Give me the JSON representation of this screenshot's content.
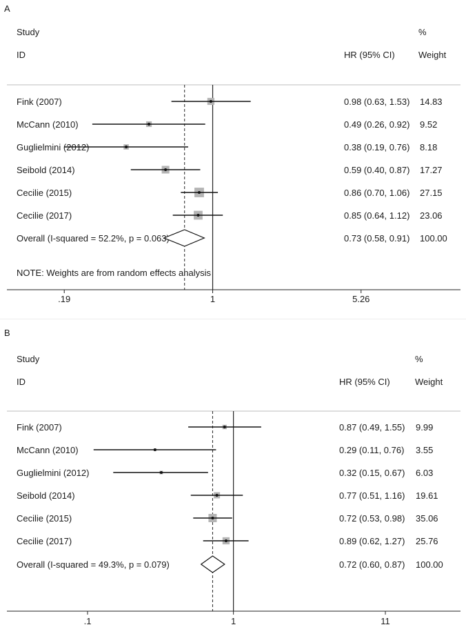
{
  "chart_data": [
    {
      "type": "forest",
      "panel_label": "A",
      "header": {
        "study_label": "Study",
        "id_label": "ID",
        "effect_label": "HR (95% CI)",
        "weight_pct": "%",
        "weight_label": "Weight"
      },
      "studies": [
        {
          "name": "Fink (2007)",
          "hr": 0.98,
          "lo": 0.63,
          "hi": 1.53,
          "ci_text": "0.98 (0.63, 1.53)",
          "weight": 14.83,
          "weight_text": "14.83"
        },
        {
          "name": "McCann (2010)",
          "hr": 0.49,
          "lo": 0.26,
          "hi": 0.92,
          "ci_text": "0.49 (0.26, 0.92)",
          "weight": 9.52,
          "weight_text": "9.52"
        },
        {
          "name": "Guglielmini (2012)",
          "hr": 0.38,
          "lo": 0.19,
          "hi": 0.76,
          "ci_text": "0.38 (0.19, 0.76)",
          "weight": 8.18,
          "weight_text": "8.18"
        },
        {
          "name": "Seibold (2014)",
          "hr": 0.59,
          "lo": 0.4,
          "hi": 0.87,
          "ci_text": "0.59 (0.40, 0.87)",
          "weight": 17.27,
          "weight_text": "17.27"
        },
        {
          "name": "Cecilie (2015)",
          "hr": 0.86,
          "lo": 0.7,
          "hi": 1.06,
          "ci_text": "0.86 (0.70, 1.06)",
          "weight": 27.15,
          "weight_text": "27.15"
        },
        {
          "name": "Cecilie (2017)",
          "hr": 0.85,
          "lo": 0.64,
          "hi": 1.12,
          "ci_text": "0.85 (0.64, 1.12)",
          "weight": 23.06,
          "weight_text": "23.06"
        }
      ],
      "overall": {
        "label": "Overall  (I-squared = 52.2%, p = 0.063)",
        "hr": 0.73,
        "lo": 0.58,
        "hi": 0.91,
        "ci_text": "0.73 (0.58, 0.91)",
        "weight_text": "100.00"
      },
      "note": "NOTE: Weights are from random effects analysis",
      "x_ticks": [
        {
          "value": 0.19,
          "label": ".19"
        },
        {
          "value": 1,
          "label": "1"
        },
        {
          "value": 5.26,
          "label": "5.26"
        }
      ],
      "xlim": [
        0.1,
        16
      ],
      "scale": "log",
      "reference_line": 1
    },
    {
      "type": "forest",
      "panel_label": "B",
      "header": {
        "study_label": "Study",
        "id_label": "ID",
        "effect_label": "HR (95% CI)",
        "weight_pct": "%",
        "weight_label": "Weight"
      },
      "studies": [
        {
          "name": "Fink (2007)",
          "hr": 0.87,
          "lo": 0.49,
          "hi": 1.55,
          "ci_text": "0.87 (0.49, 1.55)",
          "weight": 9.99,
          "weight_text": "9.99"
        },
        {
          "name": "McCann (2010)",
          "hr": 0.29,
          "lo": 0.11,
          "hi": 0.76,
          "ci_text": "0.29 (0.11, 0.76)",
          "weight": 3.55,
          "weight_text": "3.55"
        },
        {
          "name": "Guglielmini (2012)",
          "hr": 0.32,
          "lo": 0.15,
          "hi": 0.67,
          "ci_text": "0.32 (0.15, 0.67)",
          "weight": 6.03,
          "weight_text": "6.03"
        },
        {
          "name": "Seibold (2014)",
          "hr": 0.77,
          "lo": 0.51,
          "hi": 1.16,
          "ci_text": "0.77 (0.51, 1.16)",
          "weight": 19.61,
          "weight_text": "19.61"
        },
        {
          "name": "Cecilie (2015)",
          "hr": 0.72,
          "lo": 0.53,
          "hi": 0.98,
          "ci_text": "0.72 (0.53, 0.98)",
          "weight": 35.06,
          "weight_text": "35.06"
        },
        {
          "name": "Cecilie (2017)",
          "hr": 0.89,
          "lo": 0.62,
          "hi": 1.27,
          "ci_text": "0.89 (0.62, 1.27)",
          "weight": 25.76,
          "weight_text": "25.76"
        }
      ],
      "overall": {
        "label": "Overall  (I-squared = 49.3%, p = 0.079)",
        "hr": 0.72,
        "lo": 0.6,
        "hi": 0.87,
        "ci_text": "0.72 (0.60, 0.87)",
        "weight_text": "100.00"
      },
      "note": "",
      "x_ticks": [
        {
          "value": 0.1,
          "label": ".1"
        },
        {
          "value": 1,
          "label": "1"
        },
        {
          "value": 11,
          "label": "11"
        }
      ],
      "xlim": [
        0.028,
        36
      ],
      "scale": "log",
      "reference_line": 1
    }
  ]
}
